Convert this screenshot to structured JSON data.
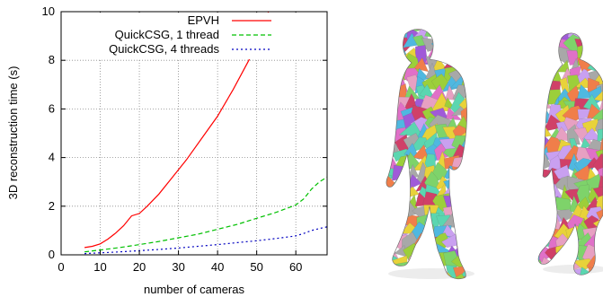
{
  "chart_data": {
    "type": "line",
    "title": "",
    "xlabel": "number of cameras",
    "ylabel": "3D reconstruction time (s)",
    "xlim": [
      0,
      68
    ],
    "ylim": [
      0,
      10
    ],
    "x_ticks": [
      "0",
      "10",
      "20",
      "30",
      "40",
      "50",
      "60"
    ],
    "y_ticks": [
      "0",
      "2",
      "4",
      "6",
      "8",
      "10"
    ],
    "grid": true,
    "legend_position": "top-right",
    "series": [
      {
        "name": "EPVH",
        "color": "#ff0000",
        "dash": "solid",
        "x": [
          6,
          8,
          10,
          12,
          14,
          16,
          18,
          20,
          22,
          25,
          28,
          32,
          36,
          40,
          44,
          48,
          52,
          53
        ],
        "y": [
          0.3,
          0.35,
          0.45,
          0.65,
          0.9,
          1.2,
          1.6,
          1.7,
          2.0,
          2.5,
          3.1,
          3.9,
          4.8,
          5.7,
          6.8,
          8.0,
          9.4,
          10.0
        ]
      },
      {
        "name": "QuickCSG, 1 thread",
        "color": "#00c000",
        "dash": "5,3",
        "x": [
          6,
          10,
          15,
          20,
          25,
          30,
          35,
          40,
          45,
          50,
          55,
          60,
          62,
          64,
          66,
          68
        ],
        "y": [
          0.12,
          0.2,
          0.3,
          0.42,
          0.55,
          0.7,
          0.85,
          1.05,
          1.25,
          1.5,
          1.75,
          2.05,
          2.3,
          2.7,
          3.0,
          3.2
        ]
      },
      {
        "name": "QuickCSG, 4 threads",
        "color": "#0000c0",
        "dash": "2,3",
        "x": [
          6,
          10,
          15,
          20,
          25,
          30,
          35,
          40,
          45,
          50,
          55,
          60,
          62,
          64,
          66,
          68
        ],
        "y": [
          0.05,
          0.08,
          0.12,
          0.17,
          0.22,
          0.28,
          0.35,
          0.42,
          0.5,
          0.58,
          0.67,
          0.78,
          0.88,
          1.0,
          1.08,
          1.15
        ]
      }
    ]
  },
  "right_panel": {
    "content": "two walking human mesh reconstructions with multicolored facet patches",
    "patch_colors": [
      "#e8d23a",
      "#4fb8e0",
      "#e070c8",
      "#7ed36a",
      "#a05ad8",
      "#f07e4a",
      "#d04068",
      "#c9a0f0",
      "#5bd6b0",
      "#9ccf3a",
      "#e7a0c2",
      "#a8a8a8"
    ]
  }
}
